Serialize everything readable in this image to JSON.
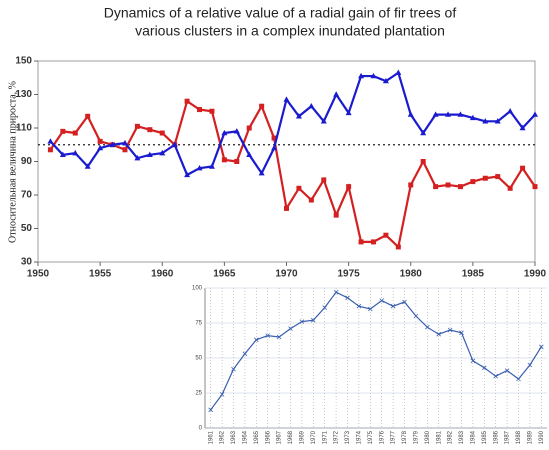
{
  "chart_data": [
    {
      "type": "line",
      "title": [
        "Dynamics of a relative value of a radial gain of fir trees of",
        "various clusters in a complex inundated plantation"
      ],
      "y_label": "Относительная величина прироста, %",
      "x": [
        1951,
        1952,
        1953,
        1954,
        1955,
        1956,
        1957,
        1958,
        1959,
        1960,
        1961,
        1962,
        1963,
        1964,
        1965,
        1966,
        1967,
        1968,
        1969,
        1970,
        1971,
        1972,
        1973,
        1974,
        1975,
        1976,
        1977,
        1978,
        1979,
        1980,
        1981,
        1982,
        1983,
        1984,
        1985,
        1986,
        1987,
        1988,
        1989,
        1990
      ],
      "series": [
        {
          "color": "#d42020",
          "values": [
            97,
            108,
            107,
            117,
            102,
            100,
            97,
            111,
            109,
            107,
            100,
            126,
            121,
            120,
            91,
            90,
            110,
            123,
            104,
            62,
            74,
            67,
            79,
            58,
            75,
            42,
            42,
            46,
            39,
            76,
            90,
            75,
            76,
            75,
            78,
            80,
            81,
            74,
            86,
            75
          ]
        },
        {
          "color": "#1a1ad0",
          "values": [
            102,
            94,
            95,
            87,
            98,
            100,
            101,
            92,
            94,
            95,
            100,
            82,
            86,
            87,
            107,
            108,
            94,
            83,
            98,
            127,
            117,
            123,
            114,
            130,
            119,
            141,
            141,
            138,
            143,
            118,
            107,
            118,
            118,
            118,
            116,
            114,
            114,
            120,
            110,
            118
          ]
        }
      ],
      "reference_line": 100,
      "xlim": [
        1950,
        1990
      ],
      "xticks": [
        1950,
        1955,
        1960,
        1965,
        1970,
        1975,
        1980,
        1985,
        1990
      ],
      "ylim": [
        30,
        150
      ],
      "yticks": [
        30,
        50,
        70,
        90,
        110,
        130,
        150
      ]
    },
    {
      "type": "line",
      "categories": [
        "1961",
        "1962",
        "1963",
        "1964",
        "1965",
        "1966",
        "1967",
        "1968",
        "1969",
        "1970",
        "1971",
        "1972",
        "1973",
        "1974",
        "1975",
        "1976",
        "1977",
        "1978",
        "1979",
        "1980",
        "1981",
        "1982",
        "1983",
        "1984",
        "1985",
        "1986",
        "1987",
        "1988",
        "1989",
        "1990"
      ],
      "series": [
        {
          "color": "#3a5fb0",
          "values": [
            13,
            24,
            42,
            53,
            63,
            66,
            65,
            71,
            76,
            77,
            86,
            97,
            93,
            87,
            85,
            91,
            87,
            90,
            80,
            72,
            67,
            70,
            68,
            48,
            43,
            37,
            41,
            35,
            45,
            58
          ]
        }
      ],
      "ylim": [
        0,
        100
      ],
      "yticks": [
        0,
        25,
        50,
        75,
        100
      ],
      "grid": true
    }
  ]
}
